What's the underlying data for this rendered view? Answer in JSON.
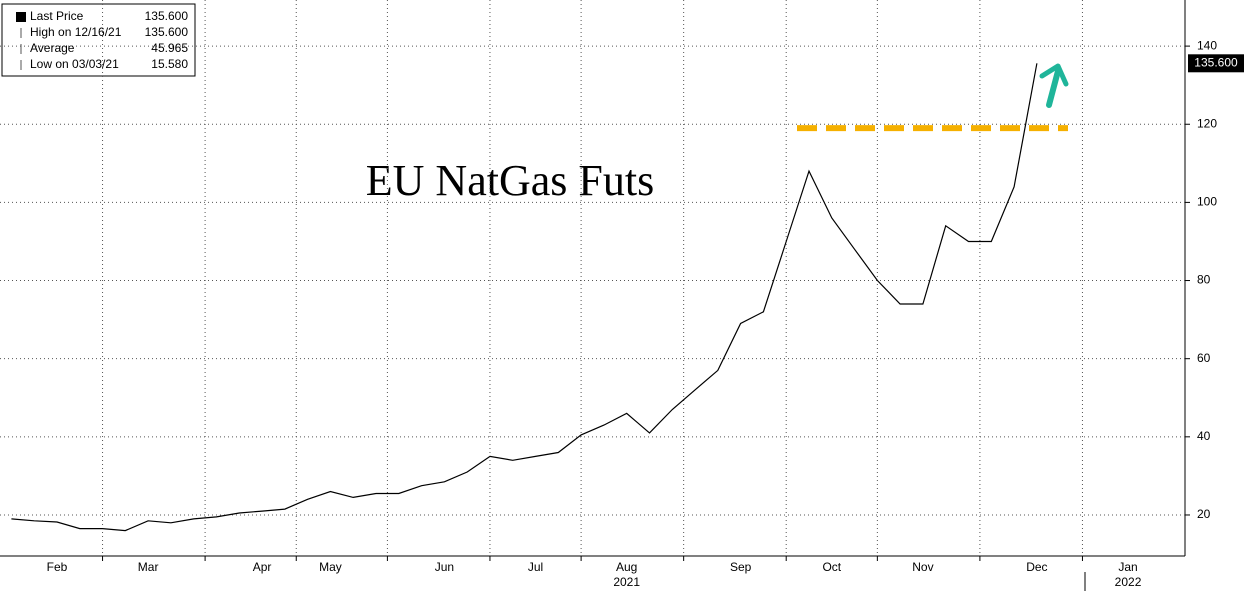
{
  "chart_data": {
    "type": "line",
    "title": "EU NatGas Futs",
    "categories": [
      null,
      null,
      "Feb",
      null,
      null,
      null,
      "Mar",
      null,
      null,
      null,
      null,
      "Apr",
      null,
      null,
      "May",
      null,
      null,
      null,
      null,
      "Jun",
      null,
      null,
      null,
      "Jul",
      null,
      null,
      null,
      "Aug",
      null,
      null,
      null,
      null,
      "Sep",
      null,
      null,
      null,
      "Oct",
      null,
      null,
      null,
      "Nov",
      null,
      null,
      null,
      null,
      "Dec",
      null,
      null,
      null,
      "Jan",
      null,
      null
    ],
    "years": [
      "2021",
      "2022"
    ],
    "series": [
      {
        "name": "Last Price",
        "color": "#000000",
        "values": [
          19,
          18.5,
          18.2,
          16.5,
          16.5,
          16,
          18.5,
          18,
          19,
          19.5,
          20.5,
          21,
          21.5,
          24,
          26,
          24.5,
          25.5,
          25.5,
          27.5,
          28.5,
          31,
          35,
          34,
          35,
          36,
          40.5,
          43,
          46,
          41,
          47,
          52,
          57,
          69,
          72,
          90,
          108,
          96,
          88,
          80,
          74,
          74,
          94,
          90,
          90,
          104,
          135.6,
          null,
          null,
          null,
          null,
          null,
          null
        ]
      }
    ],
    "legend_stats": [
      {
        "label": "Last Price",
        "text": "135.600"
      },
      {
        "label": "High on 12/16/21",
        "text": "135.600"
      },
      {
        "label": "Average",
        "text": "45.965"
      },
      {
        "label": "Low on 03/03/21",
        "text": "15.580"
      }
    ],
    "reference_line": {
      "value": 119,
      "color": "#f5b000"
    },
    "ylim": [
      9.5,
      151.8
    ],
    "yticks": [
      20,
      40,
      60,
      80,
      100,
      120,
      140
    ],
    "grid": true
  }
}
